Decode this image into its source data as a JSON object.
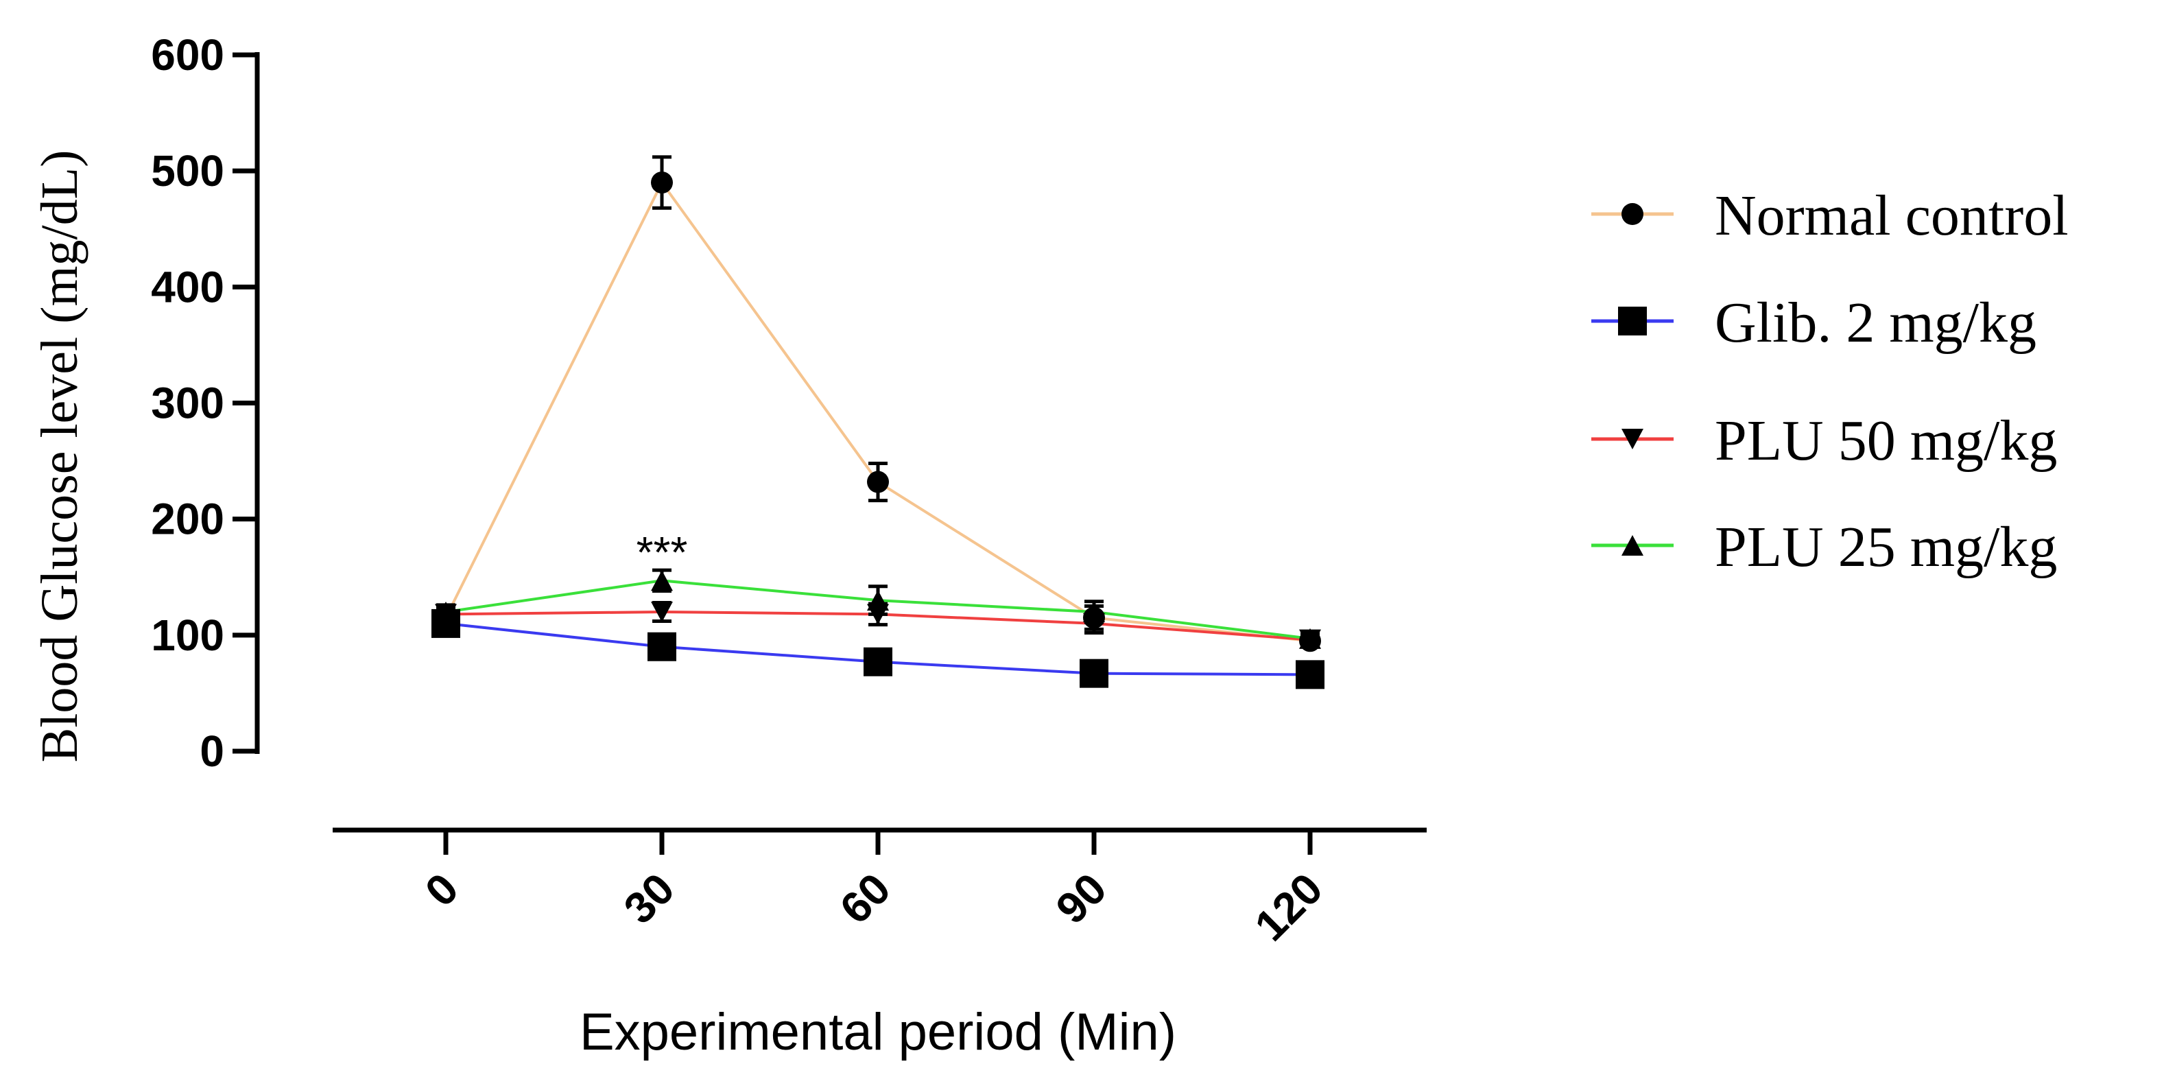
{
  "chart_data": {
    "type": "line",
    "title": "",
    "xlabel": "Experimental period (Min)",
    "ylabel": "Blood Glucose level (mg/dL)",
    "x": [
      0,
      30,
      60,
      90,
      120
    ],
    "x_tick_labels": [
      "0",
      "30",
      "60",
      "90",
      "120"
    ],
    "y_tick_labels": [
      "0",
      "100",
      "200",
      "300",
      "400",
      "500",
      "600"
    ],
    "ylim": [
      0,
      600
    ],
    "y_ticks": [
      0,
      100,
      200,
      300,
      400,
      500,
      600
    ],
    "grid": false,
    "legend_position": "right",
    "series": [
      {
        "name": "Normal control",
        "marker": "circle",
        "line_color": "#f5c48f",
        "values": [
          115,
          490,
          232,
          115,
          95
        ],
        "errors": [
          8,
          22,
          16,
          10,
          5
        ]
      },
      {
        "name": "Glib. 2 mg/kg",
        "marker": "square",
        "line_color": "#3a3af0",
        "values": [
          110,
          90,
          77,
          67,
          66
        ],
        "errors": [
          6,
          5,
          5,
          4,
          4
        ]
      },
      {
        "name": "PLU 50 mg/kg",
        "marker": "triangle-down",
        "line_color": "#f04040",
        "values": [
          118,
          120,
          118,
          110,
          96
        ],
        "errors": [
          6,
          8,
          9,
          8,
          5
        ]
      },
      {
        "name": "PLU 25 mg/kg",
        "marker": "triangle-up",
        "line_color": "#3ae03a",
        "values": [
          120,
          147,
          130,
          120,
          97
        ],
        "errors": [
          6,
          9,
          12,
          9,
          5
        ]
      }
    ],
    "annotations": [
      {
        "text": "***",
        "x": 30,
        "y": 175
      }
    ]
  }
}
